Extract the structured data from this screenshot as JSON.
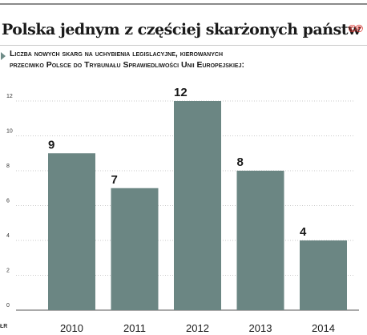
{
  "header": {
    "title": "Polska jednym z częściej skarżonych państw",
    "logo": "©℗"
  },
  "chart_data": {
    "type": "bar",
    "subtitle_lines": [
      "Liczba nowych skarg na uchybienia legislacyjne, kierowanych",
      "przeciwko Polsce do Trybunału Sprawiedliwości Unii Europejskiej:"
    ],
    "categories": [
      "2010",
      "2011",
      "2012",
      "2013",
      "2014"
    ],
    "values": [
      9,
      7,
      12,
      8,
      4
    ],
    "yticks": [
      "0",
      "2",
      "4",
      "6",
      "8",
      "10",
      "12"
    ],
    "ylim": [
      0,
      12
    ],
    "grid": true,
    "bar_color": "#6b8683"
  },
  "footer": {
    "source_mark": "ŁR"
  }
}
